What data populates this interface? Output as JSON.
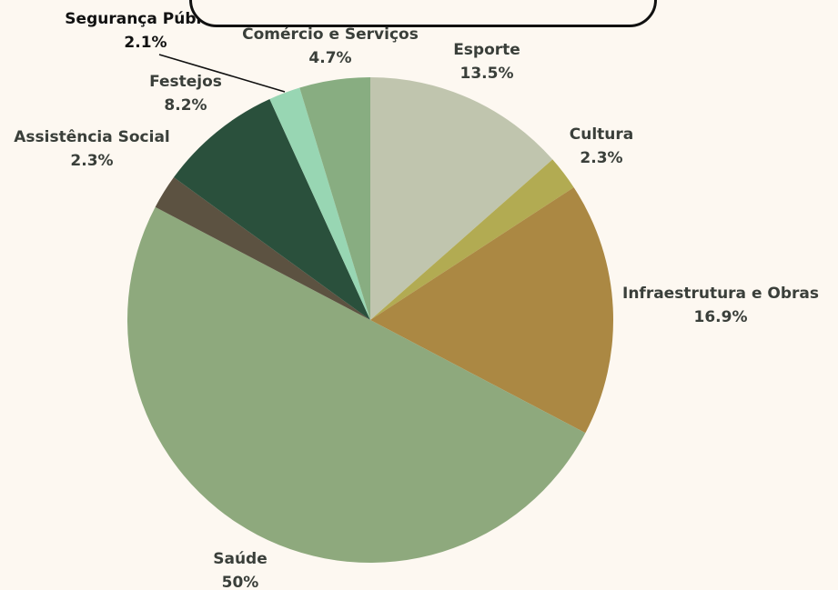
{
  "chart_data": {
    "type": "pie",
    "slices": [
      {
        "label": "Esporte",
        "value": 13.5,
        "value_label": "13.5%",
        "color": "#c0c5ae"
      },
      {
        "label": "Cultura",
        "value": 2.3,
        "value_label": "2.3%",
        "color": "#b2ab52"
      },
      {
        "label": "Infraestrutura e Obras",
        "value": 16.9,
        "value_label": "16.9%",
        "color": "#ab8843"
      },
      {
        "label": "Saúde",
        "value": 50,
        "value_label": "50%",
        "color": "#8ea97d"
      },
      {
        "label": "Assistência Social",
        "value": 2.3,
        "value_label": "2.3%",
        "color": "#5c5241"
      },
      {
        "label": "Festejos",
        "value": 8.2,
        "value_label": "8.2%",
        "color": "#2a503c"
      },
      {
        "label": "Segurança Pública",
        "value": 2.1,
        "value_label": "2.1%",
        "color": "#98d6b3"
      },
      {
        "label": "Comércio e Serviços",
        "value": 4.7,
        "value_label": "4.7%",
        "color": "#88ad81"
      }
    ],
    "start_angle_deg": 0,
    "direction": "clockwise",
    "legend": "none",
    "data_labels": "outside"
  },
  "colors": {
    "background": "#fdf8f1",
    "label_text": "#3a3f3a"
  }
}
